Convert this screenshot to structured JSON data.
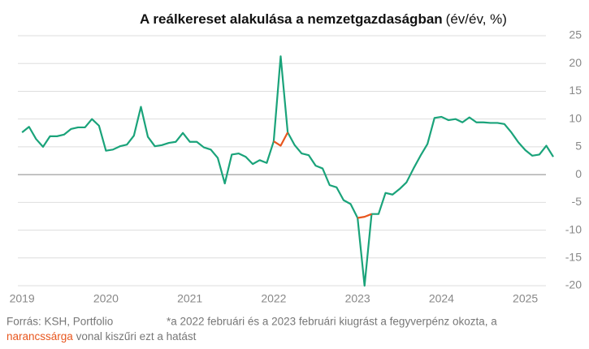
{
  "chart_data": {
    "type": "line",
    "title": "A reálkereset alakulása a nemzetgazdaságban",
    "subtitle": "(év/év, %)",
    "x": [
      2019.0,
      2019.083,
      2019.167,
      2019.25,
      2019.333,
      2019.417,
      2019.5,
      2019.583,
      2019.667,
      2019.75,
      2019.833,
      2019.917,
      2020.0,
      2020.083,
      2020.167,
      2020.25,
      2020.333,
      2020.417,
      2020.5,
      2020.583,
      2020.667,
      2020.75,
      2020.833,
      2020.917,
      2021.0,
      2021.083,
      2021.167,
      2021.25,
      2021.333,
      2021.417,
      2021.5,
      2021.583,
      2021.667,
      2021.75,
      2021.833,
      2021.917,
      2022.0,
      2022.083,
      2022.167,
      2022.25,
      2022.333,
      2022.417,
      2022.5,
      2022.583,
      2022.667,
      2022.75,
      2022.833,
      2022.917,
      2023.0,
      2023.083,
      2023.167,
      2023.25,
      2023.333,
      2023.417,
      2023.5,
      2023.583,
      2023.667,
      2023.75,
      2023.833,
      2023.917,
      2024.0,
      2024.083,
      2024.167,
      2024.25,
      2024.333,
      2024.417,
      2024.5,
      2024.583,
      2024.667,
      2024.75,
      2024.833,
      2024.917,
      2025.0,
      2025.083,
      2025.167,
      2025.25,
      2025.333
    ],
    "series": [
      {
        "color": "#1aa37a",
        "values": [
          7.6,
          8.6,
          6.4,
          5.0,
          6.9,
          6.9,
          7.2,
          8.2,
          8.5,
          8.5,
          10.0,
          8.8,
          4.3,
          4.5,
          5.1,
          5.4,
          7.0,
          12.2,
          6.8,
          5.1,
          5.3,
          5.7,
          5.9,
          7.5,
          5.9,
          5.9,
          4.9,
          4.5,
          3.0,
          -1.6,
          3.6,
          3.8,
          3.2,
          1.9,
          2.6,
          2.1,
          6.0,
          21.3,
          7.6,
          5.3,
          3.8,
          3.5,
          1.6,
          1.1,
          -1.9,
          -2.3,
          -4.6,
          -5.3,
          -7.8,
          -20.0,
          -7.1,
          -7.1,
          -3.3,
          -3.6,
          -2.6,
          -1.4,
          1.1,
          3.4,
          5.5,
          10.2,
          10.4,
          9.8,
          10.0,
          9.4,
          10.3,
          9.4,
          9.4,
          9.3,
          9.3,
          9.1,
          7.6,
          5.8,
          4.4,
          3.4,
          3.6,
          5.2,
          3.2
        ]
      },
      {
        "color": "#e8561e",
        "values": [
          null,
          null,
          null,
          null,
          null,
          null,
          null,
          null,
          null,
          null,
          null,
          null,
          null,
          null,
          null,
          null,
          null,
          null,
          null,
          null,
          null,
          null,
          null,
          null,
          null,
          null,
          null,
          null,
          null,
          null,
          null,
          null,
          null,
          null,
          null,
          null,
          6.0,
          5.2,
          7.6,
          null,
          null,
          null,
          null,
          null,
          null,
          null,
          null,
          null,
          -7.8,
          -7.6,
          -7.1,
          null,
          null,
          null,
          null,
          null,
          null,
          null,
          null,
          null,
          null,
          null,
          null,
          null,
          null,
          null,
          null,
          null,
          null,
          null,
          null,
          null,
          null,
          null,
          null,
          null,
          null
        ]
      }
    ],
    "xlim": [
      2018.95,
      2025.42
    ],
    "xticks": [
      2019,
      2020,
      2021,
      2022,
      2023,
      2024,
      2025
    ],
    "ylim": [
      -20,
      25
    ],
    "yticks": [
      25,
      20,
      15,
      10,
      5,
      0,
      -5,
      -10,
      -15,
      -20
    ],
    "grid": true,
    "source": "Forrás: KSH, Portfolio",
    "note_line1": "*a 2022 februári és a 2023 februári kiugrást a fegyverpénz okozta, a",
    "note_highlight": "narancssárga",
    "note_rest": " vonal kiszűri ezt a hatást"
  }
}
